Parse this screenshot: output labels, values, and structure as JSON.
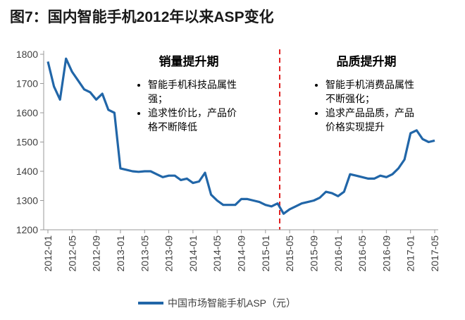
{
  "chart_data": {
    "type": "line",
    "title": "图7：国内智能手机2012年以来ASP变化",
    "categories": [
      "2012-01",
      null,
      null,
      null,
      "2012-05",
      null,
      null,
      null,
      "2012-09",
      null,
      null,
      null,
      "2013-01",
      null,
      null,
      null,
      "2013-05",
      null,
      null,
      null,
      "2013-09",
      null,
      null,
      null,
      "2014-01",
      null,
      null,
      null,
      "2014-05",
      null,
      null,
      null,
      "2014-09",
      null,
      null,
      null,
      "2015-01",
      null,
      null,
      null,
      "2015-05",
      null,
      null,
      null,
      "2015-09",
      null,
      null,
      null,
      "2016-01",
      null,
      null,
      null,
      "2016-05",
      null,
      null,
      null,
      "2016-09",
      null,
      null,
      null,
      "2017-01",
      null,
      null,
      null,
      "2017-05"
    ],
    "series": [
      {
        "name": "中国市场智能手机ASP（元）",
        "color": "#2166a8",
        "values": [
          1775,
          1690,
          1645,
          1785,
          1740,
          1710,
          1680,
          1670,
          1645,
          1665,
          1610,
          1600,
          1410,
          1405,
          1400,
          1398,
          1400,
          1400,
          1390,
          1380,
          1385,
          1385,
          1370,
          1375,
          1360,
          1365,
          1395,
          1320,
          1300,
          1285,
          1285,
          1285,
          1305,
          1305,
          1300,
          1295,
          1285,
          1280,
          1290,
          1255,
          1270,
          1280,
          1290,
          1295,
          1300,
          1310,
          1330,
          1325,
          1315,
          1330,
          1390,
          1385,
          1380,
          1375,
          1375,
          1385,
          1380,
          1390,
          1410,
          1440,
          1530,
          1540,
          1510,
          1500,
          1505
        ]
      }
    ],
    "ylim": [
      1200,
      1800
    ],
    "yticks": [
      1200,
      1300,
      1400,
      1500,
      1600,
      1700,
      1800
    ],
    "annotations": [
      {
        "title": "销量提升期",
        "bullets": [
          "智能手机科技品属性强；",
          "追求性价比，产品价格不断降低"
        ]
      },
      {
        "title": "品质提升期",
        "bullets": [
          "智能手机消费品属性不断强化；",
          "追求产品品质，产品价格实现提升"
        ]
      }
    ]
  }
}
